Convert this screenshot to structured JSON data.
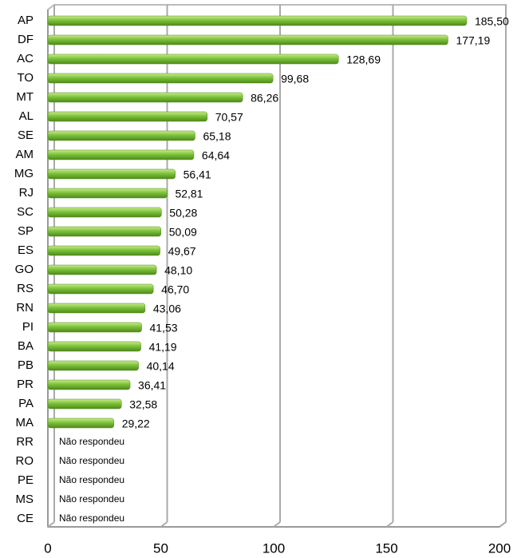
{
  "chart_data": {
    "type": "bar",
    "orientation": "horizontal",
    "categories": [
      "AP",
      "DF",
      "AC",
      "TO",
      "MT",
      "AL",
      "SE",
      "AM",
      "MG",
      "RJ",
      "SC",
      "SP",
      "ES",
      "GO",
      "RS",
      "RN",
      "PI",
      "BA",
      "PB",
      "PR",
      "PA",
      "MA",
      "RR",
      "RO",
      "PE",
      "MS",
      "CE"
    ],
    "values": [
      185.5,
      177.19,
      128.69,
      99.68,
      86.26,
      70.57,
      65.18,
      64.64,
      56.41,
      52.81,
      50.28,
      50.09,
      49.67,
      48.1,
      46.7,
      43.06,
      41.53,
      41.19,
      40.14,
      36.41,
      32.58,
      29.22,
      null,
      null,
      null,
      null,
      null
    ],
    "value_labels": [
      "185,50",
      "177,19",
      "128,69",
      "99,68",
      "86,26",
      "70,57",
      "65,18",
      "64,64",
      "56,41",
      "52,81",
      "50,28",
      "50,09",
      "49,67",
      "48,10",
      "46,70",
      "43,06",
      "41,53",
      "41,19",
      "40,14",
      "36,41",
      "32,58",
      "29,22",
      "Não respondeu",
      "Não respondeu",
      "Não respondeu",
      "Não respondeu",
      "Não respondeu"
    ],
    "color": "#7ec23a",
    "xlim": [
      0,
      200
    ],
    "xticks": [
      0,
      50,
      100,
      150,
      200
    ],
    "grid": true
  }
}
